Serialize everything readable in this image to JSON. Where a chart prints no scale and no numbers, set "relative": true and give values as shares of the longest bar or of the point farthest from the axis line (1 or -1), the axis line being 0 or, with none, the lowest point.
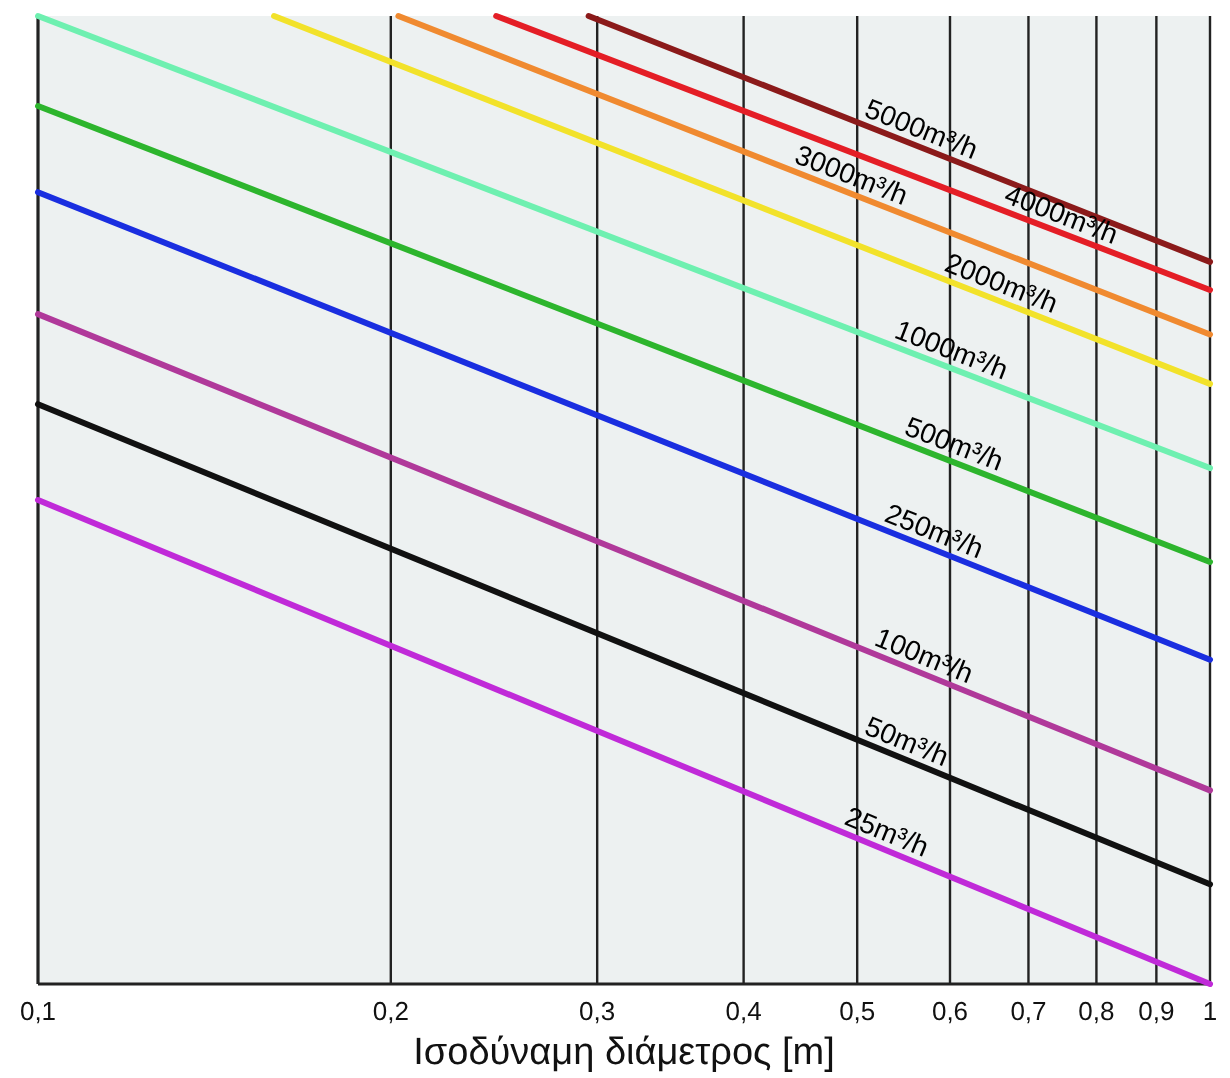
{
  "chart_data": {
    "type": "line",
    "relative": true,
    "log": "x",
    "grid": "x",
    "xlabel": "Ισοδύναμη διάμετρος [m]",
    "xlim": [
      0.1,
      1
    ],
    "xticks": [
      {
        "value": 0.1,
        "label": "0,1"
      },
      {
        "value": 0.2,
        "label": "0,2"
      },
      {
        "value": 0.3,
        "label": "0,3"
      },
      {
        "value": 0.4,
        "label": "0,4"
      },
      {
        "value": 0.5,
        "label": "0,5"
      },
      {
        "value": 0.6,
        "label": "0,6"
      },
      {
        "value": 0.7,
        "label": "0,7"
      },
      {
        "value": 0.8,
        "label": "0,8"
      },
      {
        "value": 0.9,
        "label": "0,9"
      },
      {
        "value": 1,
        "label": "1"
      }
    ],
    "series": [
      {
        "name": "5000m³/h",
        "color": "#8b1a1a",
        "x": [
          0.295,
          1
        ],
        "values": [
          1.0,
          0.746
        ]
      },
      {
        "name": "4000m³/h",
        "color": "#e41e26",
        "x": [
          0.246,
          1
        ],
        "values": [
          1.0,
          0.717
        ]
      },
      {
        "name": "3000m³/h",
        "color": "#f08a30",
        "x": [
          0.203,
          1
        ],
        "values": [
          1.0,
          0.671
        ]
      },
      {
        "name": "2000m³/h",
        "color": "#f2e22a",
        "x": [
          0.159,
          1
        ],
        "values": [
          1.0,
          0.62
        ]
      },
      {
        "name": "1000m³/h",
        "color": "#6ef0b0",
        "x": [
          0.1,
          1
        ],
        "values": [
          1.0,
          0.533
        ]
      },
      {
        "name": "500m³/h",
        "color": "#2db52d",
        "x": [
          0.1,
          1
        ],
        "values": [
          0.907,
          0.436
        ]
      },
      {
        "name": "250m³/h",
        "color": "#1a2ee0",
        "x": [
          0.1,
          1
        ],
        "values": [
          0.818,
          0.335
        ]
      },
      {
        "name": "100m³/h",
        "color": "#b0399a",
        "x": [
          0.1,
          1
        ],
        "values": [
          0.692,
          0.2
        ]
      },
      {
        "name": "50m³/h",
        "color": "#111111",
        "x": [
          0.1,
          1
        ],
        "values": [
          0.599,
          0.103
        ]
      },
      {
        "name": "25m³/h",
        "color": "#c02ad8",
        "x": [
          0.1,
          1
        ],
        "values": [
          0.5,
          0.0
        ]
      }
    ]
  }
}
